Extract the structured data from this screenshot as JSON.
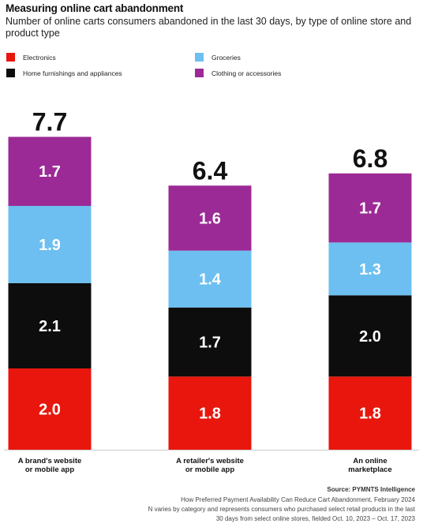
{
  "chart_data": {
    "type": "bar",
    "stacked": true,
    "title": "Measuring online cart abandonment",
    "subtitle": "Number of online carts consumers abandoned in the last 30 days, by type of online store and product type",
    "categories": [
      "A brand's website or mobile app",
      "A retailer's website or mobile app",
      "An online marketplace"
    ],
    "category_lines": [
      [
        "A brand's website",
        "or mobile app"
      ],
      [
        "A retailer's website",
        "or mobile app"
      ],
      [
        "An online",
        "marketplace"
      ]
    ],
    "totals": [
      "7.7",
      "6.4",
      "6.8"
    ],
    "series": [
      {
        "name": "Electronics",
        "color": "#e8160c",
        "values": [
          2.0,
          1.8,
          1.8
        ],
        "labels": [
          "2.0",
          "1.8",
          "1.8"
        ]
      },
      {
        "name": "Home furnishings and appliances",
        "color": "#0d0d0d",
        "values": [
          2.1,
          1.7,
          2.0
        ],
        "labels": [
          "2.1",
          "1.7",
          "2.0"
        ]
      },
      {
        "name": "Groceries",
        "color": "#6cbff0",
        "values": [
          1.9,
          1.4,
          1.3
        ],
        "labels": [
          "1.9",
          "1.4",
          "1.3"
        ]
      },
      {
        "name": "Clothing or accessories",
        "color": "#9c2a96",
        "values": [
          1.7,
          1.6,
          1.7
        ],
        "labels": [
          "1.7",
          "1.6",
          "1.7"
        ]
      }
    ],
    "legend_position": "top",
    "grid": false
  },
  "footer": {
    "source": "Source: PYMNTS Intelligence",
    "line1": "How Preferred Payment Availability Can Reduce Cart Abandonment, February 2024",
    "line2": "N varies by category and represents consumers who purchased select retail products in the last",
    "line3": "30 days from select online stores, fielded Oct. 10, 2023 – Oct. 17, 2023"
  }
}
